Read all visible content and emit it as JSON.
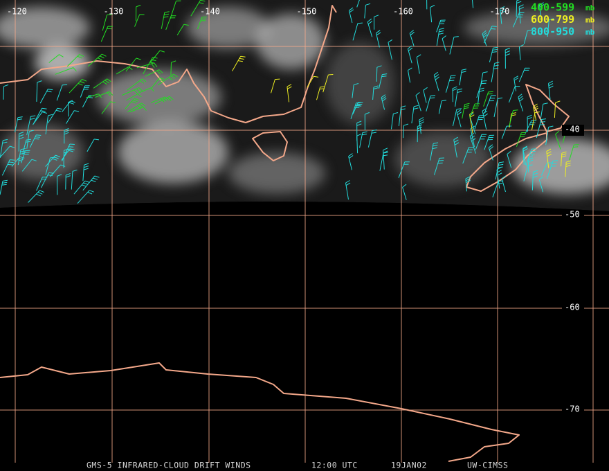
{
  "map": {
    "longitude_labels": [
      -120,
      -130,
      -140,
      -150,
      -160,
      -170
    ],
    "latitude_labels": [
      -40,
      -50,
      -60,
      -70
    ],
    "legend": [
      {
        "label": "400-599",
        "unit": "mb",
        "color": "#22dd22"
      },
      {
        "label": "600-799",
        "unit": "mb",
        "color": "#eeee22"
      },
      {
        "label": "800-950",
        "unit": "mb",
        "color": "#22dddd"
      }
    ],
    "footer": {
      "product": "GMS-5 INFRARED-CLOUD DRIFT WINDS",
      "time": "12:00 UTC",
      "date": "19JAN02",
      "source": "UW-CIMSS"
    }
  }
}
